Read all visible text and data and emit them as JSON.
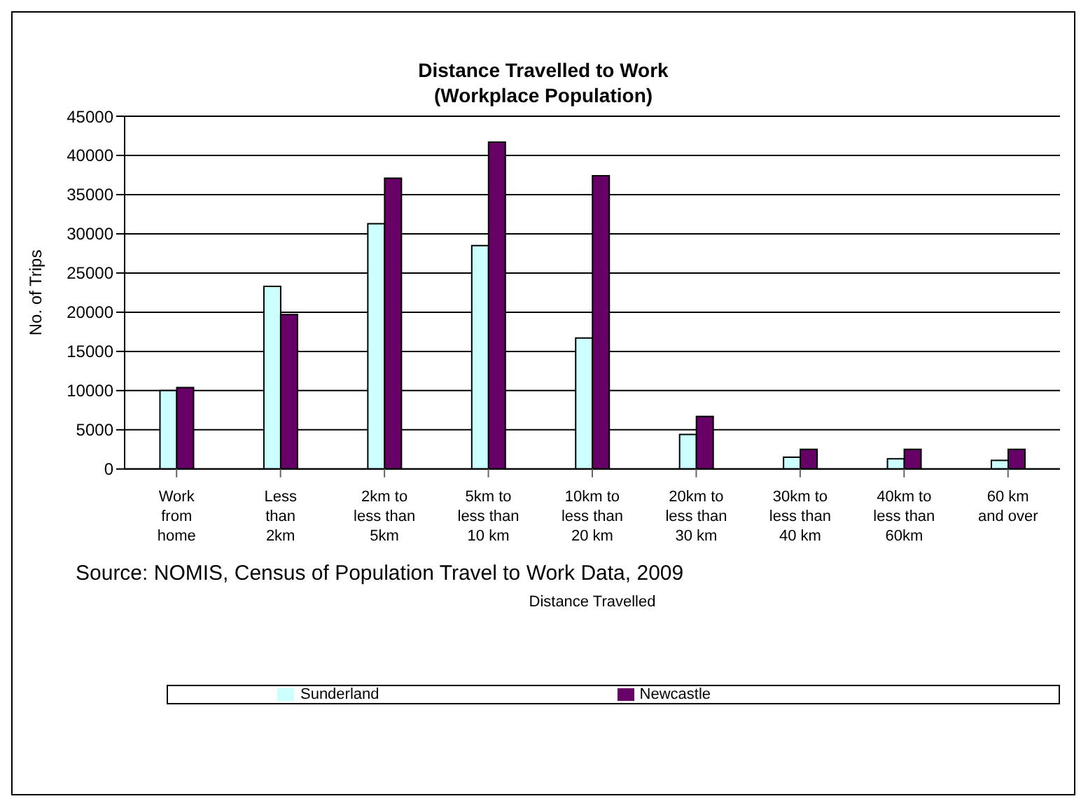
{
  "chart_data": {
    "type": "bar",
    "title": "Distance Travelled to Work\n(Workplace Population)",
    "xlabel": "Distance Travelled",
    "ylabel": "No. of Trips",
    "categories": [
      "Work\nfrom\nhome",
      "Less\nthan\n2km",
      "2km to\nless than\n5km",
      "5km to\nless than\n10 km",
      "10km to\nless than\n20 km",
      "20km to\nless than\n30 km",
      "30km to\nless than\n40 km",
      "40km to\nless than\n60km",
      "60 km\nand over"
    ],
    "series": [
      {
        "name": "Sunderland",
        "color": "#ccffff",
        "values": [
          10000,
          23300,
          31300,
          28500,
          16700,
          4400,
          1500,
          1300,
          1100
        ]
      },
      {
        "name": "Newcastle",
        "color": "#660066",
        "values": [
          10400,
          19700,
          37100,
          41700,
          37400,
          6700,
          2500,
          2500,
          2500
        ]
      }
    ],
    "ylim": [
      0,
      45000
    ],
    "yticks": [
      0,
      5000,
      10000,
      15000,
      20000,
      25000,
      30000,
      35000,
      40000,
      45000
    ],
    "grid": "y",
    "legend": "bottom",
    "annotations": [
      "Source: NOMIS, Census of Population Travel to Work Data, 2009"
    ]
  }
}
